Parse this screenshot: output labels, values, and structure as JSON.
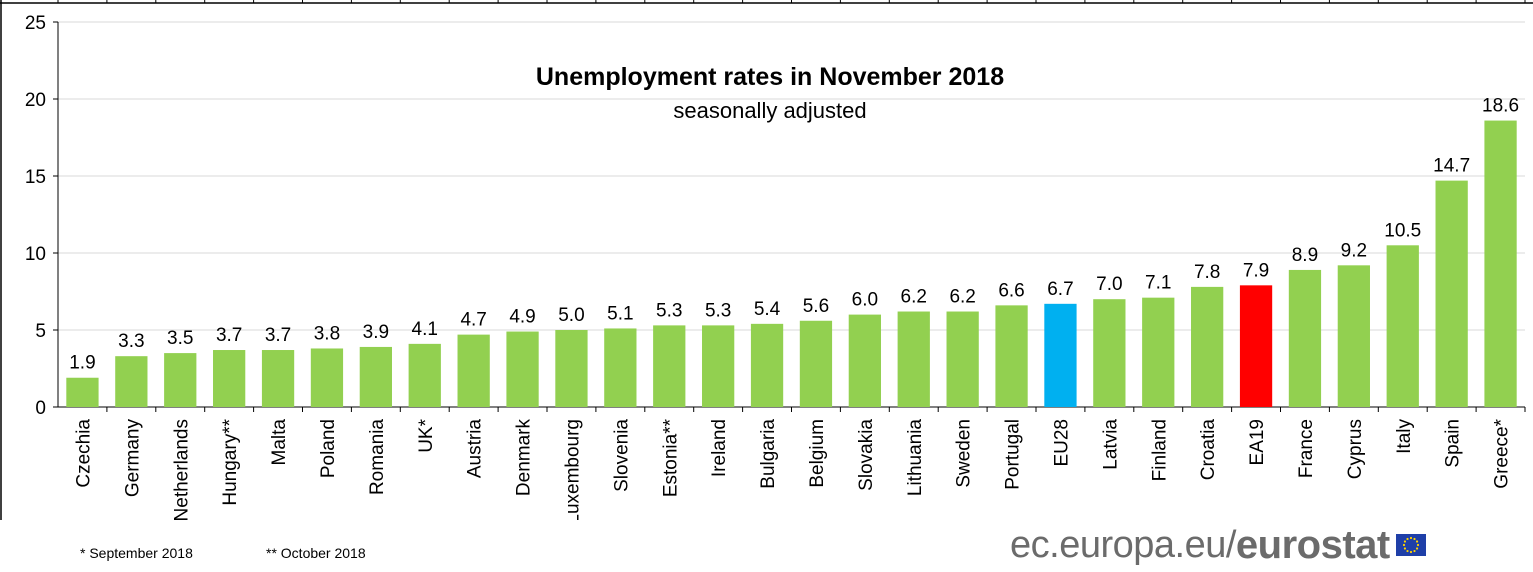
{
  "chart_data": {
    "type": "bar",
    "title": "Unemployment rates in November 2018",
    "subtitle": "seasonally adjusted",
    "xlabel": "",
    "ylabel": "",
    "ylim": [
      0,
      25
    ],
    "yticks": [
      0,
      5,
      10,
      15,
      20,
      25
    ],
    "grid": true,
    "categories": [
      "Czechia",
      "Germany",
      "Netherlands",
      "Hungary**",
      "Malta",
      "Poland",
      "Romania",
      "UK*",
      "Austria",
      "Denmark",
      "Luxembourg",
      "Slovenia",
      "Estonia**",
      "Ireland",
      "Bulgaria",
      "Belgium",
      "Slovakia",
      "Lithuania",
      "Sweden",
      "Portugal",
      "EU28",
      "Latvia",
      "Finland",
      "Croatia",
      "EA19",
      "France",
      "Cyprus",
      "Italy",
      "Spain",
      "Greece*"
    ],
    "values": [
      1.9,
      3.3,
      3.5,
      3.7,
      3.7,
      3.8,
      3.9,
      4.1,
      4.7,
      4.9,
      5.0,
      5.1,
      5.3,
      5.3,
      5.4,
      5.6,
      6.0,
      6.2,
      6.2,
      6.6,
      6.7,
      7.0,
      7.1,
      7.8,
      7.9,
      8.9,
      9.2,
      10.5,
      14.7,
      18.6
    ],
    "value_labels": [
      "1.9",
      "3.3",
      "3.5",
      "3.7",
      "3.7",
      "3.8",
      "3.9",
      "4.1",
      "4.7",
      "4.9",
      "5.0",
      "5.1",
      "5.3",
      "5.3",
      "5.4",
      "5.6",
      "6.0",
      "6.2",
      "6.2",
      "6.6",
      "6.7",
      "7.0",
      "7.1",
      "7.8",
      "7.9",
      "8.9",
      "9.2",
      "10.5",
      "14.7",
      "18.6"
    ],
    "colors": {
      "default": "#92d050",
      "highlight": {
        "EU28": "#00b0f0",
        "EA19": "#ff0000"
      },
      "gridline": "#d9d9d9"
    }
  },
  "footnotes": [
    "*  September 2018",
    "** October 2018"
  ],
  "brand": {
    "domain": "ec.europa.eu/",
    "name": "eurostat",
    "flag_icon": "eu-flag-icon"
  }
}
